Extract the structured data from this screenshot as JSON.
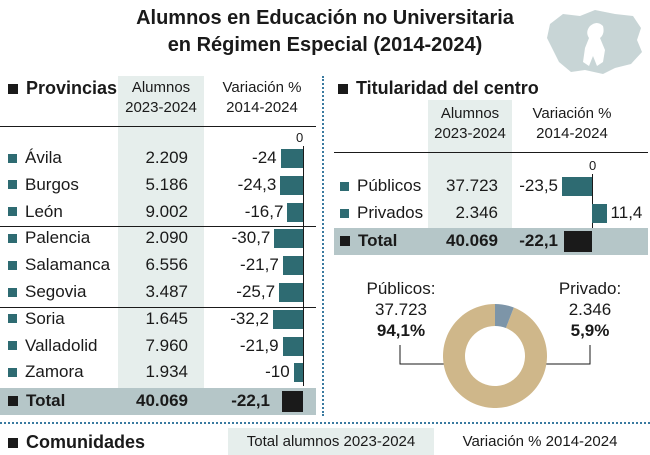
{
  "title_line1": "Alumnos en Educación no Universitaria",
  "title_line2": "en Régimen Especial (2014-2024)",
  "provincias": {
    "header": "Provincias",
    "col_alumnos_1": "Alumnos",
    "col_alumnos_2": "2023-2024",
    "col_var_1": "Variación %",
    "col_var_2": "2014-2024",
    "zero_label": "0",
    "rows": [
      {
        "name": "Ávila",
        "alumnos": "2.209",
        "var": "-24",
        "v": -24
      },
      {
        "name": "Burgos",
        "alumnos": "5.186",
        "var": "-24,3",
        "v": -24.3
      },
      {
        "name": "León",
        "alumnos": "9.002",
        "var": "-16,7",
        "v": -16.7
      },
      {
        "name": "Palencia",
        "alumnos": "2.090",
        "var": "-30,7",
        "v": -30.7
      },
      {
        "name": "Salamanca",
        "alumnos": "6.556",
        "var": "-21,7",
        "v": -21.7
      },
      {
        "name": "Segovia",
        "alumnos": "3.487",
        "var": "-25,7",
        "v": -25.7
      },
      {
        "name": "Soria",
        "alumnos": "1.645",
        "var": "-32,2",
        "v": -32.2
      },
      {
        "name": "Valladolid",
        "alumnos": "7.960",
        "var": "-21,9",
        "v": -21.9
      },
      {
        "name": "Zamora",
        "alumnos": "1.934",
        "var": "-10",
        "v": -10
      }
    ],
    "total": {
      "name": "Total",
      "alumnos": "40.069",
      "var": "-22,1",
      "v": -22.1
    }
  },
  "titularidad": {
    "header": "Titularidad del centro",
    "col_alumnos_1": "Alumnos",
    "col_alumnos_2": "2023-2024",
    "col_var_1": "Variación %",
    "col_var_2": "2014-2024",
    "zero_label": "0",
    "rows": [
      {
        "name": "Públicos",
        "alumnos": "37.723",
        "var": "-23,5",
        "v": -23.5
      },
      {
        "name": "Privados",
        "alumnos": "2.346",
        "var": "11,4",
        "v": 11.4
      }
    ],
    "total": {
      "name": "Total",
      "alumnos": "40.069",
      "var": "-22,1",
      "v": -22.1
    }
  },
  "donut": {
    "left_label": "Públicos:",
    "left_value": "37.723",
    "left_pct": "94,1%",
    "right_label": "Privado:",
    "right_value": "2.346",
    "right_pct": "5,9%",
    "colors": {
      "publicos": "#cfb78a",
      "privados": "#7d95a8"
    }
  },
  "footer": {
    "header": "Comunidades",
    "col1": "Total alumnos 2023-2024",
    "col2": "Variación % 2014-2024"
  },
  "chart_data": [
    {
      "type": "bar",
      "categories": [
        "Ávila",
        "Burgos",
        "León",
        "Palencia",
        "Salamanca",
        "Segovia",
        "Soria",
        "Valladolid",
        "Zamora",
        "Total"
      ],
      "series": [
        {
          "name": "Alumnos 2023-2024",
          "values": [
            2209,
            5186,
            9002,
            2090,
            6556,
            3487,
            1645,
            7960,
            1934,
            40069
          ]
        },
        {
          "name": "Variación % 2014-2024",
          "values": [
            -24,
            -24.3,
            -16.7,
            -30.7,
            -21.7,
            -25.7,
            -32.2,
            -21.9,
            -10,
            -22.1
          ]
        }
      ],
      "xlabel": "",
      "ylabel": ""
    },
    {
      "type": "bar",
      "categories": [
        "Públicos",
        "Privados",
        "Total"
      ],
      "series": [
        {
          "name": "Alumnos 2023-2024",
          "values": [
            37723,
            2346,
            40069
          ]
        },
        {
          "name": "Variación % 2014-2024",
          "values": [
            -23.5,
            11.4,
            -22.1
          ]
        }
      ],
      "xlabel": "",
      "ylabel": ""
    },
    {
      "type": "pie",
      "categories": [
        "Públicos",
        "Privado"
      ],
      "values": [
        94.1,
        5.9
      ]
    }
  ]
}
